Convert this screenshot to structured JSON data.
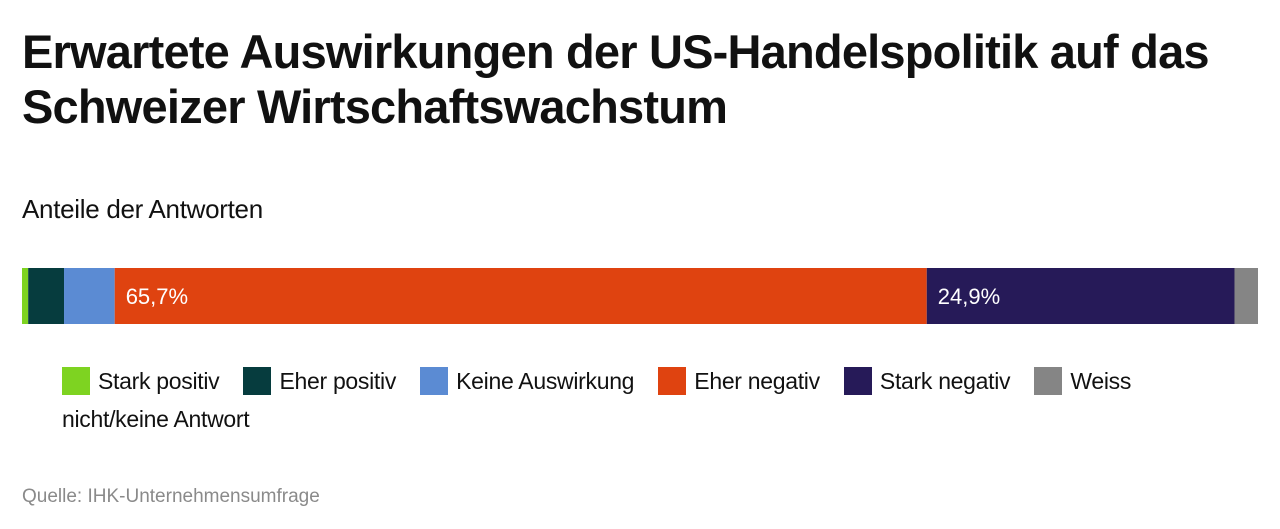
{
  "chart_data": {
    "type": "bar",
    "orientation": "horizontal-stacked",
    "title": "Erwartete Auswirkungen der US-Handelspolitik auf das Schweizer Wirtschaftswachstum",
    "subtitle": "Anteile der Antworten",
    "source": "Quelle: IHK-Unternehmensumfrage",
    "xlim": [
      0,
      100
    ],
    "legend_position": "bottom",
    "grid": false,
    "series": [
      {
        "name": "Stark positiv",
        "value": 0.5,
        "color": "#7ed321",
        "label": ""
      },
      {
        "name": "Eher positiv",
        "value": 2.9,
        "color": "#063c3e",
        "label": ""
      },
      {
        "name": "Keine Auswirkung",
        "value": 4.1,
        "color": "#5b8bd3",
        "label": ""
      },
      {
        "name": "Eher negativ",
        "value": 65.7,
        "color": "#df4310",
        "label": "65,7%"
      },
      {
        "name": "Stark negativ",
        "value": 24.9,
        "color": "#261a58",
        "label": "24,9%"
      },
      {
        "name": "Weiss nicht/keine Antwort",
        "value": 1.9,
        "color": "#858585",
        "label": ""
      }
    ]
  }
}
